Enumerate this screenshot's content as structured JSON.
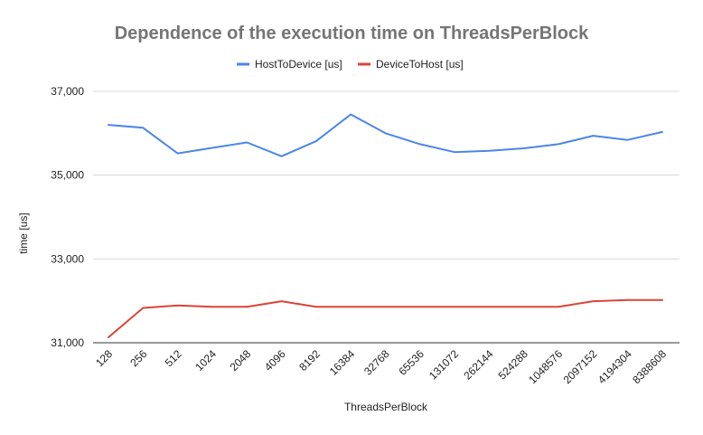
{
  "chart_data": {
    "type": "line",
    "title": "Dependence of the execution time on ThreadsPerBlock",
    "xlabel": "ThreadsPerBlock",
    "ylabel": "time [us]",
    "categories": [
      "128",
      "256",
      "512",
      "1024",
      "2048",
      "4096",
      "8192",
      "16384",
      "32768",
      "65536",
      "131072",
      "262144",
      "524288",
      "1048576",
      "2097152",
      "4194304",
      "8388608"
    ],
    "ylim": [
      31000,
      37000
    ],
    "yticks": [
      31000,
      33000,
      35000,
      37000
    ],
    "ytick_labels": [
      "31,000",
      "33,000",
      "35,000",
      "37,000"
    ],
    "grid": true,
    "legend_position": "top",
    "series": [
      {
        "name": "HostToDevice [us]",
        "color": "#4a86e8",
        "values": [
          36200,
          36130,
          35520,
          35650,
          35780,
          35450,
          35810,
          36450,
          36000,
          35740,
          35550,
          35580,
          35640,
          35740,
          35940,
          35840,
          36030
        ]
      },
      {
        "name": "DeviceToHost [us]",
        "color": "#db4437",
        "values": [
          31130,
          31830,
          31890,
          31860,
          31860,
          31990,
          31860,
          31860,
          31860,
          31860,
          31860,
          31860,
          31860,
          31860,
          31990,
          32020,
          32020
        ]
      }
    ]
  }
}
